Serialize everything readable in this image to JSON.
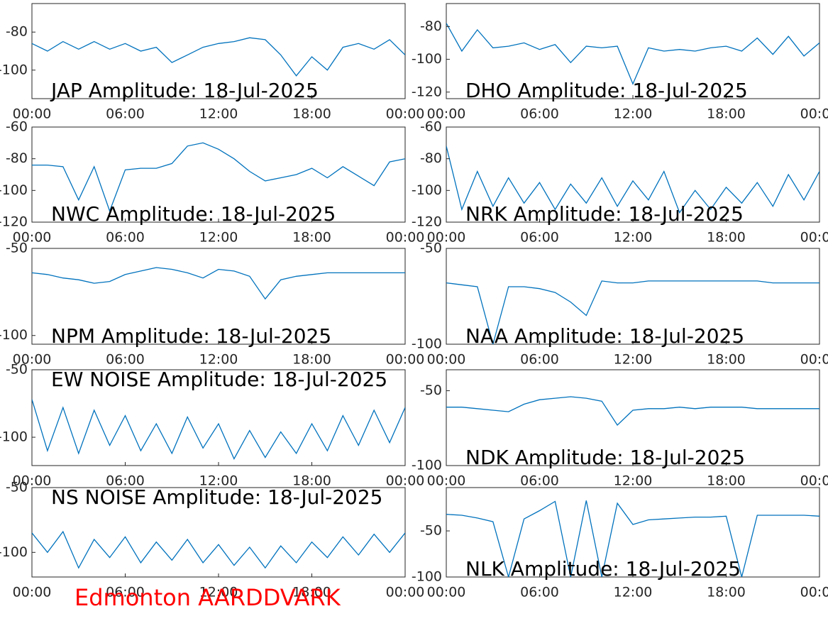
{
  "chart_data": [
    {
      "type": "line",
      "title": "JAP Amplitude: 18-Jul-2025",
      "x": [
        0,
        1,
        2,
        3,
        4,
        5,
        6,
        7,
        8,
        9,
        10,
        11,
        12,
        13,
        14,
        15,
        16,
        17,
        18,
        19,
        20,
        21,
        22,
        23,
        24
      ],
      "values": [
        -86,
        -90,
        -85,
        -89,
        -85,
        -89,
        -86,
        -90,
        -88,
        -96,
        -92,
        -88,
        -86,
        -85,
        -83,
        -84,
        -92,
        -103,
        -93,
        -100,
        -88,
        -86,
        -89,
        -84,
        -92
      ],
      "color": "#0072bd",
      "xlim": [
        0,
        24
      ],
      "xticks": [
        {
          "value": 0,
          "label": "00:00"
        },
        {
          "value": 6,
          "label": "06:00"
        },
        {
          "value": 12,
          "label": "12:00"
        },
        {
          "value": 18,
          "label": "18:00"
        },
        {
          "value": 24,
          "label": "00:00"
        }
      ],
      "ylim": [
        -115,
        -65
      ],
      "yticks": [
        -100,
        -80
      ]
    },
    {
      "type": "line",
      "title": "DHO Amplitude: 18-Jul-2025",
      "x": [
        0,
        1,
        2,
        3,
        4,
        5,
        6,
        7,
        8,
        9,
        10,
        11,
        12,
        13,
        14,
        15,
        16,
        17,
        18,
        19,
        20,
        21,
        22,
        23,
        24
      ],
      "values": [
        -78,
        -95,
        -82,
        -93,
        -92,
        -90,
        -94,
        -91,
        -102,
        -92,
        -93,
        -92,
        -115,
        -93,
        -95,
        -94,
        -95,
        -93,
        -92,
        -95,
        -87,
        -97,
        -86,
        -98,
        -90
      ],
      "color": "#0072bd",
      "xlim": [
        0,
        24
      ],
      "xticks": [
        {
          "value": 0,
          "label": "00:00"
        },
        {
          "value": 6,
          "label": "06:00"
        },
        {
          "value": 12,
          "label": "12:00"
        },
        {
          "value": 18,
          "label": "18:00"
        },
        {
          "value": 24,
          "label": "00:00"
        }
      ],
      "ylim": [
        -124,
        -66
      ],
      "yticks": [
        -120,
        -100,
        -80
      ]
    },
    {
      "type": "line",
      "title": "NWC Amplitude: 18-Jul-2025",
      "x": [
        0,
        1,
        2,
        3,
        4,
        5,
        6,
        7,
        8,
        9,
        10,
        11,
        12,
        13,
        14,
        15,
        16,
        17,
        18,
        19,
        20,
        21,
        22,
        23,
        24
      ],
      "values": [
        -84,
        -84,
        -85,
        -106,
        -85,
        -113,
        -87,
        -86,
        -86,
        -83,
        -72,
        -70,
        -74,
        -80,
        -88,
        -94,
        -92,
        -90,
        -86,
        -92,
        -85,
        -91,
        -97,
        -82,
        -80
      ],
      "color": "#0072bd",
      "xlim": [
        0,
        24
      ],
      "xticks": [
        {
          "value": 0,
          "label": "00:00"
        },
        {
          "value": 6,
          "label": "06:00"
        },
        {
          "value": 12,
          "label": "12:00"
        },
        {
          "value": 18,
          "label": "18:00"
        },
        {
          "value": 24,
          "label": "00:00"
        }
      ],
      "ylim": [
        -120,
        -60
      ],
      "yticks": [
        -120,
        -100,
        -80,
        -60
      ]
    },
    {
      "type": "line",
      "title": "NRK Amplitude: 18-Jul-2025",
      "x": [
        0,
        1,
        2,
        3,
        4,
        5,
        6,
        7,
        8,
        9,
        10,
        11,
        12,
        13,
        14,
        15,
        16,
        17,
        18,
        19,
        20,
        21,
        22,
        23,
        24
      ],
      "values": [
        -72,
        -112,
        -88,
        -110,
        -92,
        -108,
        -95,
        -112,
        -96,
        -108,
        -92,
        -110,
        -94,
        -106,
        -88,
        -114,
        -100,
        -112,
        -98,
        -108,
        -95,
        -110,
        -90,
        -106,
        -88
      ],
      "color": "#0072bd",
      "xlim": [
        0,
        24
      ],
      "xticks": [
        {
          "value": 0,
          "label": "00:00"
        },
        {
          "value": 6,
          "label": "06:00"
        },
        {
          "value": 12,
          "label": "12:00"
        },
        {
          "value": 18,
          "label": "18:00"
        },
        {
          "value": 24,
          "label": "00:00"
        }
      ],
      "ylim": [
        -120,
        -60
      ],
      "yticks": [
        -120,
        -100,
        -80,
        -60
      ]
    },
    {
      "type": "line",
      "title": "NPM Amplitude: 18-Jul-2025",
      "x": [
        0,
        1,
        2,
        3,
        4,
        5,
        6,
        7,
        8,
        9,
        10,
        11,
        12,
        13,
        14,
        15,
        16,
        17,
        18,
        19,
        20,
        21,
        22,
        23,
        24
      ],
      "values": [
        -64,
        -65,
        -67,
        -68,
        -70,
        -69,
        -65,
        -63,
        -61,
        -62,
        -64,
        -67,
        -62,
        -63,
        -66,
        -79,
        -68,
        -66,
        -65,
        -64,
        -64,
        -64,
        -64,
        -64,
        -64
      ],
      "color": "#0072bd",
      "xlim": [
        0,
        24
      ],
      "xticks": [
        {
          "value": 0,
          "label": "00:00"
        },
        {
          "value": 6,
          "label": "06:00"
        },
        {
          "value": 12,
          "label": "12:00"
        },
        {
          "value": 18,
          "label": "18:00"
        },
        {
          "value": 24,
          "label": "00:00"
        }
      ],
      "ylim": [
        -105,
        -50
      ],
      "yticks": [
        -100,
        -50
      ]
    },
    {
      "type": "line",
      "title": "NAA Amplitude: 18-Jul-2025",
      "x": [
        0,
        1,
        2,
        3,
        4,
        5,
        6,
        7,
        8,
        9,
        10,
        11,
        12,
        13,
        14,
        15,
        16,
        17,
        18,
        19,
        20,
        21,
        22,
        23,
        24
      ],
      "values": [
        -68,
        -69,
        -70,
        -100,
        -70,
        -70,
        -71,
        -73,
        -78,
        -85,
        -67,
        -68,
        -68,
        -67,
        -67,
        -67,
        -67,
        -67,
        -67,
        -67,
        -67,
        -68,
        -68,
        -68,
        -68
      ],
      "color": "#0072bd",
      "xlim": [
        0,
        24
      ],
      "xticks": [
        {
          "value": 0,
          "label": "00:00"
        },
        {
          "value": 6,
          "label": "06:00"
        },
        {
          "value": 12,
          "label": "12:00"
        },
        {
          "value": 18,
          "label": "18:00"
        },
        {
          "value": 24,
          "label": "00:00"
        }
      ],
      "ylim": [
        -100,
        -50
      ],
      "yticks": [
        -100,
        -50
      ]
    },
    {
      "type": "line",
      "title": "EW NOISE Amplitude: 18-Jul-2025",
      "x": [
        0,
        1,
        2,
        3,
        4,
        5,
        6,
        7,
        8,
        9,
        10,
        11,
        12,
        13,
        14,
        15,
        16,
        17,
        18,
        19,
        20,
        21,
        22,
        23,
        24
      ],
      "values": [
        -72,
        -110,
        -78,
        -112,
        -80,
        -106,
        -84,
        -110,
        -90,
        -112,
        -85,
        -108,
        -90,
        -116,
        -95,
        -115,
        -96,
        -112,
        -90,
        -110,
        -84,
        -106,
        -80,
        -104,
        -78
      ],
      "color": "#0072bd",
      "xlim": [
        0,
        24
      ],
      "xticks": [
        {
          "value": 0,
          "label": "00:00"
        },
        {
          "value": 6,
          "label": "06:00"
        },
        {
          "value": 12,
          "label": "12:00"
        },
        {
          "value": 18,
          "label": "18:00"
        },
        {
          "value": 24,
          "label": "00:00"
        }
      ],
      "ylim": [
        -121,
        -50
      ],
      "yticks": [
        -100,
        -50
      ]
    },
    {
      "type": "line",
      "title": "NDK Amplitude: 18-Jul-2025",
      "x": [
        0,
        1,
        2,
        3,
        4,
        5,
        6,
        7,
        8,
        9,
        10,
        11,
        12,
        13,
        14,
        15,
        16,
        17,
        18,
        19,
        20,
        21,
        22,
        23,
        24
      ],
      "values": [
        -61,
        -61,
        -62,
        -63,
        -64,
        -59,
        -56,
        -55,
        -54,
        -55,
        -57,
        -73,
        -63,
        -62,
        -62,
        -61,
        -62,
        -61,
        -61,
        -61,
        -62,
        -62,
        -62,
        -62,
        -62
      ],
      "color": "#0072bd",
      "xlim": [
        0,
        24
      ],
      "xticks": [
        {
          "value": 0,
          "label": "00:00"
        },
        {
          "value": 6,
          "label": "06:00"
        },
        {
          "value": 12,
          "label": "12:00"
        },
        {
          "value": 18,
          "label": "18:00"
        },
        {
          "value": 24,
          "label": "00:00"
        }
      ],
      "ylim": [
        -100,
        -36
      ],
      "yticks": [
        -100,
        -50
      ]
    },
    {
      "type": "line",
      "title": "NS NOISE Amplitude: 18-Jul-2025",
      "x": [
        0,
        1,
        2,
        3,
        4,
        5,
        6,
        7,
        8,
        9,
        10,
        11,
        12,
        13,
        14,
        15,
        16,
        17,
        18,
        19,
        20,
        21,
        22,
        23,
        24
      ],
      "values": [
        -85,
        -100,
        -84,
        -112,
        -90,
        -104,
        -88,
        -108,
        -92,
        -106,
        -90,
        -108,
        -94,
        -110,
        -96,
        -112,
        -95,
        -108,
        -92,
        -104,
        -88,
        -102,
        -86,
        -100,
        -85
      ],
      "color": "#0072bd",
      "xlim": [
        0,
        24
      ],
      "xticks": [
        {
          "value": 0,
          "label": "00:00"
        },
        {
          "value": 6,
          "label": "06:00"
        },
        {
          "value": 12,
          "label": "12:00"
        },
        {
          "value": 18,
          "label": "18:00"
        },
        {
          "value": 24,
          "label": "00:00"
        }
      ],
      "ylim": [
        -119,
        -50
      ],
      "yticks": [
        -100,
        -50
      ]
    },
    {
      "type": "line",
      "title": "NLK Amplitude: 18-Jul-2025",
      "x": [
        0,
        1,
        2,
        3,
        4,
        5,
        6,
        7,
        8,
        9,
        10,
        11,
        12,
        13,
        14,
        15,
        16,
        17,
        18,
        19,
        20,
        21,
        22,
        23,
        24
      ],
      "values": [
        -32,
        -33,
        -36,
        -40,
        -100,
        -37,
        -28,
        -18,
        -100,
        -17,
        -100,
        -20,
        -43,
        -38,
        -37,
        -36,
        -35,
        -35,
        -34,
        -100,
        -33,
        -33,
        -33,
        -33,
        -34
      ],
      "color": "#0072bd",
      "xlim": [
        0,
        24
      ],
      "xticks": [
        {
          "value": 0,
          "label": "00:00"
        },
        {
          "value": 6,
          "label": "06:00"
        },
        {
          "value": 12,
          "label": "12:00"
        },
        {
          "value": 18,
          "label": "18:00"
        },
        {
          "value": 24,
          "label": "00:00"
        }
      ],
      "ylim": [
        -100,
        -3
      ],
      "yticks": [
        -100,
        -50
      ]
    }
  ],
  "footer": "Edmonton AARDDVARK"
}
